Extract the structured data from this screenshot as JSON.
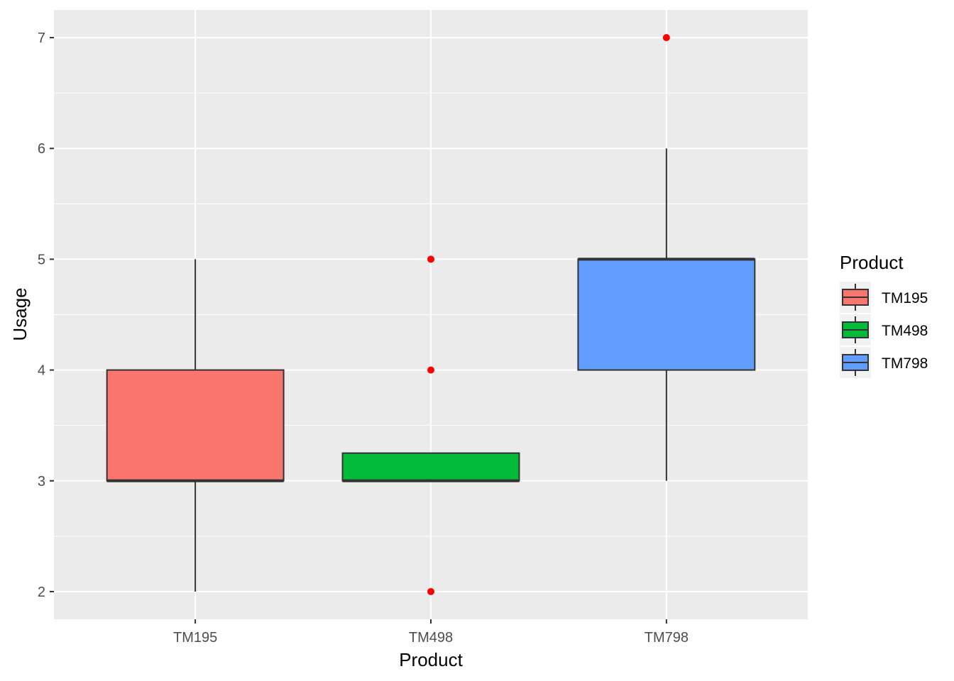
{
  "chart_data": {
    "type": "boxplot",
    "xlabel": "Product",
    "ylabel": "Usage",
    "categories": [
      "TM195",
      "TM498",
      "TM798"
    ],
    "ylim": [
      1.75,
      7.25
    ],
    "yticks": [
      2,
      3,
      4,
      5,
      6,
      7
    ],
    "grid": true,
    "boxes": [
      {
        "category": "TM195",
        "lower_whisker": 2,
        "q1": 3,
        "median": 3,
        "q3": 4,
        "upper_whisker": 5,
        "outliers": [],
        "fill": "#F8766D"
      },
      {
        "category": "TM498",
        "lower_whisker": 3,
        "q1": 3,
        "median": 3,
        "q3": 3.25,
        "upper_whisker": 3.25,
        "outliers": [
          2,
          4,
          5
        ],
        "fill": "#00BA38"
      },
      {
        "category": "TM798",
        "lower_whisker": 3,
        "q1": 4,
        "median": 5,
        "q3": 5,
        "upper_whisker": 6,
        "outliers": [
          7
        ],
        "fill": "#619CFF"
      }
    ],
    "legend": {
      "title": "Product",
      "position": "right",
      "entries": [
        {
          "label": "TM195",
          "color": "#F8766D"
        },
        {
          "label": "TM498",
          "color": "#00BA38"
        },
        {
          "label": "TM798",
          "color": "#619CFF"
        }
      ]
    },
    "outlier_color": "#FF0000",
    "panel_background": "#EBEBEB",
    "grid_color": "#FFFFFF"
  }
}
